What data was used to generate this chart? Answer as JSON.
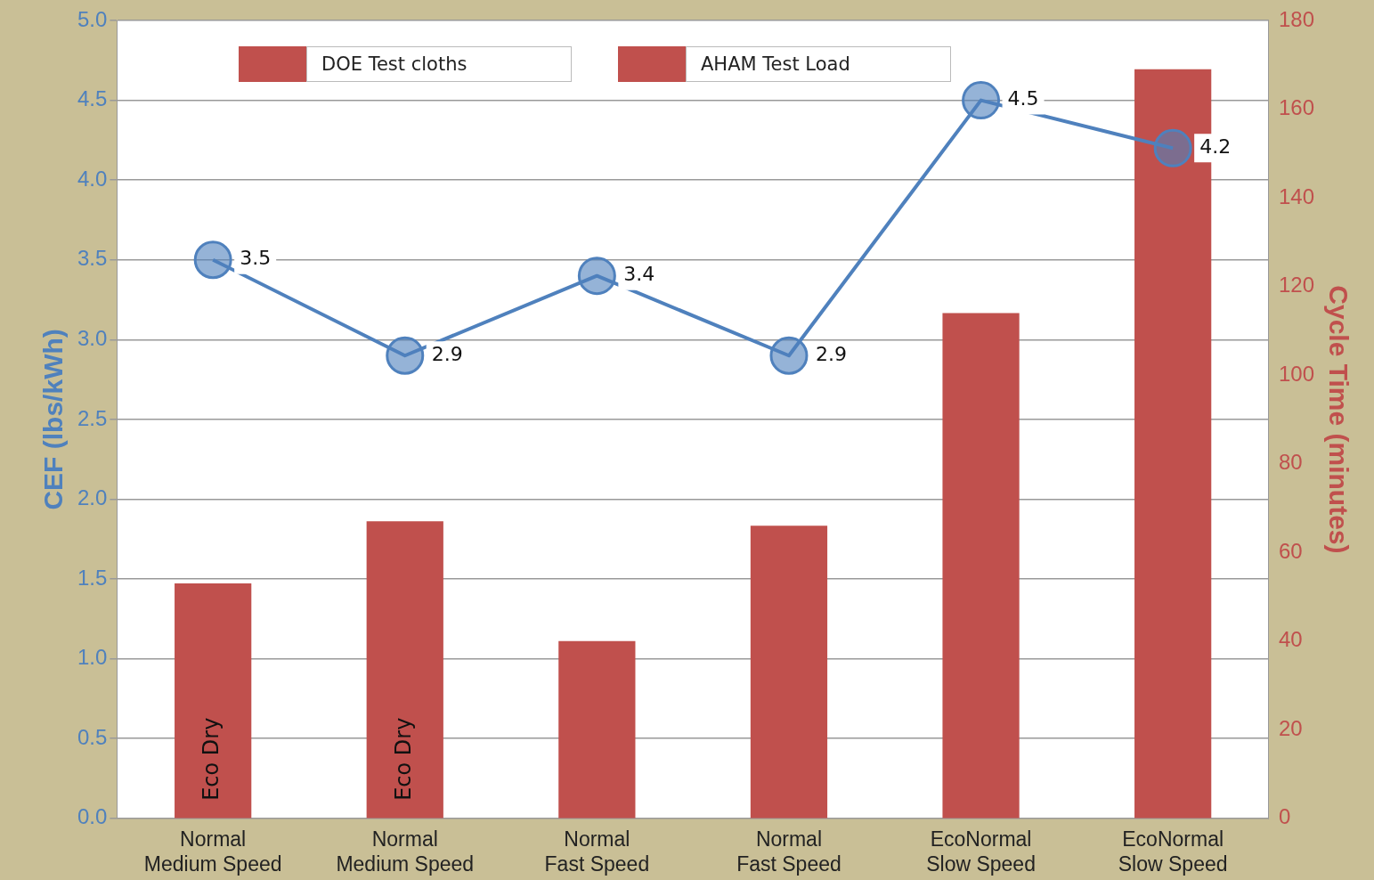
{
  "chart_data": {
    "type": "bar",
    "ylabel": "CEF (lbs/kWh)",
    "y2label": "Cycle Time (minutes)",
    "categories": [
      "Normal\nMedium Speed",
      "Normal\nMedium Speed",
      "Normal\nFast Speed",
      "Normal\nFast Speed",
      "EcoNormal\nSlow Speed",
      "EcoNormal\nSlow Speed"
    ],
    "series": [
      {
        "name": "DOE Test cloths",
        "color": "#c0504d",
        "axis": "y2",
        "values": [
          53,
          null,
          40,
          null,
          114,
          null
        ],
        "value_labels": [
          "Eco Dry",
          null,
          null,
          null,
          null,
          null
        ]
      },
      {
        "name": "AHAM Test Load",
        "color": "#c0504d",
        "axis": "y2",
        "values": [
          null,
          67,
          null,
          66,
          null,
          169
        ],
        "value_labels": [
          null,
          "Eco Dry",
          null,
          null,
          null,
          null
        ]
      },
      {
        "type": "line",
        "color": "#4f81bd",
        "axis": "y",
        "values": [
          3.5,
          2.9,
          3.4,
          2.9,
          4.5,
          4.2
        ],
        "marker": "circle",
        "data_labels": true
      }
    ],
    "ylim": [
      0,
      5
    ],
    "yticks": [
      {
        "value": 0,
        "label": "0.0"
      },
      {
        "value": 0.5,
        "label": "0.5"
      },
      {
        "value": 1,
        "label": "1.0"
      },
      {
        "value": 1.5,
        "label": "1.5"
      },
      {
        "value": 2,
        "label": "2.0"
      },
      {
        "value": 2.5,
        "label": "2.5"
      },
      {
        "value": 3,
        "label": "3.0"
      },
      {
        "value": 3.5,
        "label": "3.5"
      },
      {
        "value": 4,
        "label": "4.0"
      },
      {
        "value": 4.5,
        "label": "4.5"
      },
      {
        "value": 5,
        "label": "5.0"
      }
    ],
    "y2lim": [
      0,
      180
    ],
    "y2ticks": [
      0,
      20,
      40,
      60,
      80,
      100,
      120,
      140,
      160,
      180
    ],
    "grid": "y",
    "legend": "top"
  }
}
